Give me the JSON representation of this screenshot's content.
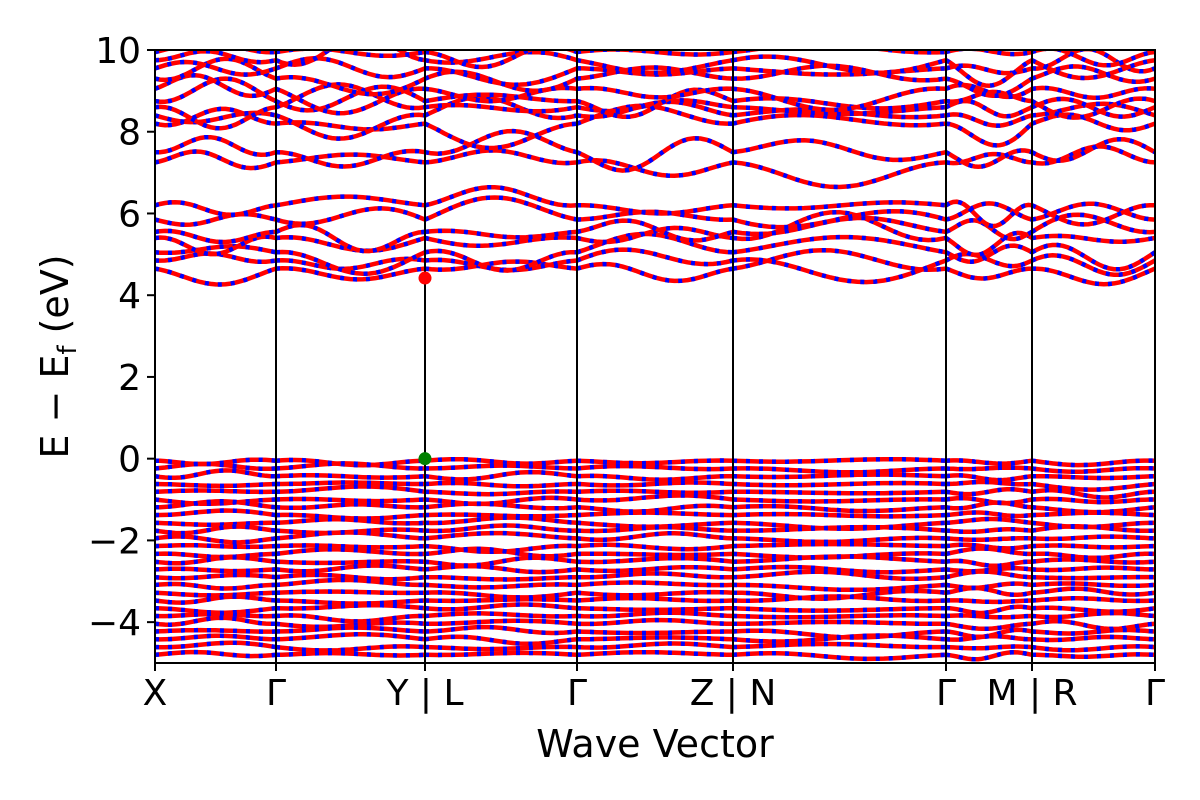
{
  "chart_data": {
    "type": "line",
    "xlabel": "Wave Vector",
    "ylabel_parts": {
      "main": "E − E",
      "sub": "f",
      "unit": " (eV)"
    },
    "ylim": [
      -5,
      10
    ],
    "yticks": [
      {
        "value": 10,
        "label": "10"
      },
      {
        "value": 8,
        "label": "8"
      },
      {
        "value": 6,
        "label": "6"
      },
      {
        "value": 4,
        "label": "4"
      },
      {
        "value": 2,
        "label": "2"
      },
      {
        "value": 0,
        "label": "0"
      },
      {
        "value": -2,
        "label": "−2"
      },
      {
        "value": -4,
        "label": "−4"
      }
    ],
    "grid": false,
    "xlim": [
      0,
      1
    ],
    "kpoint_labels": [
      {
        "pos": 0.0,
        "label": "X"
      },
      {
        "pos": 0.121,
        "label": "Γ"
      },
      {
        "pos": 0.27,
        "label": "Y | L"
      },
      {
        "pos": 0.422,
        "label": "Γ"
      },
      {
        "pos": 0.578,
        "label": "Z | N"
      },
      {
        "pos": 0.791,
        "label": "Γ"
      },
      {
        "pos": 0.877,
        "label": "M | R"
      },
      {
        "pos": 1.0,
        "label": "Γ"
      }
    ],
    "band_colors": {
      "spin_up": "#ff0000",
      "spin_down": "#0000ff"
    },
    "cbm": {
      "x": 0.27,
      "y": 4.42,
      "color": "#ff0000"
    },
    "vbm": {
      "x": 0.27,
      "y": 0.0,
      "color": "#008000"
    }
  }
}
